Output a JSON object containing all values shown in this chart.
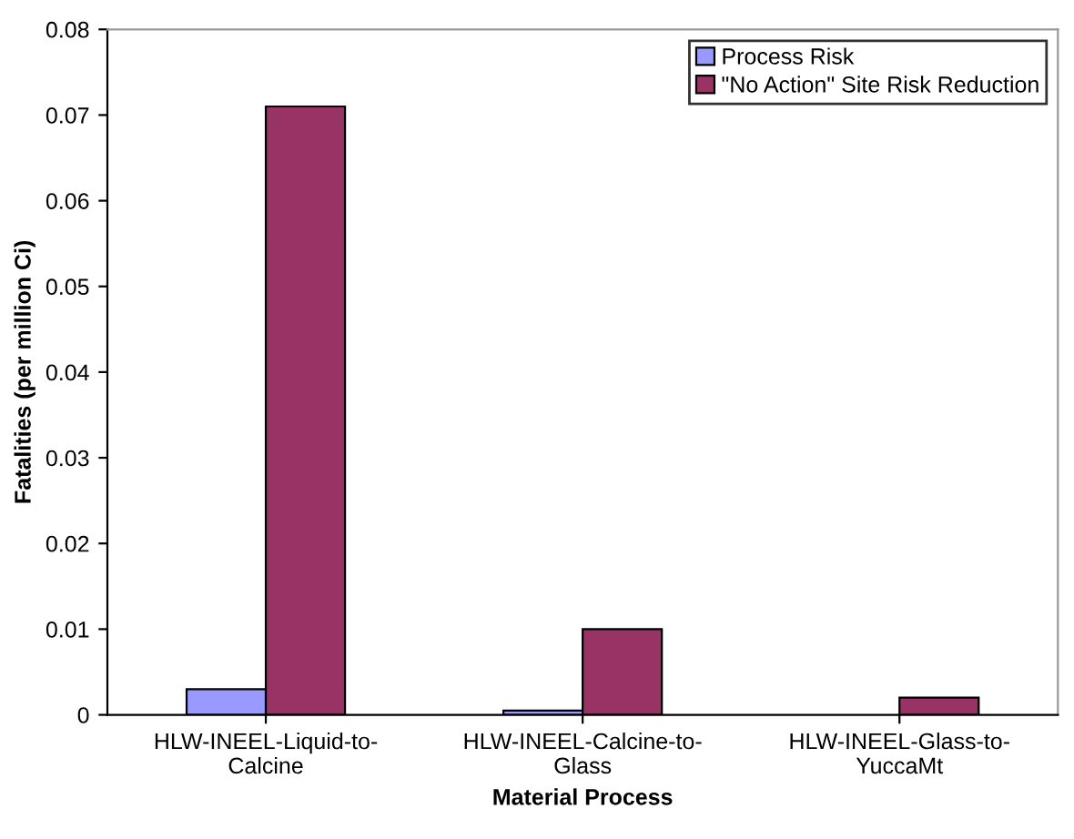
{
  "chart_data": {
    "type": "bar",
    "xlabel": "Material Process",
    "ylabel": "Fatalities (per million Ci)",
    "categories": [
      "HLW-INEEL-Liquid-to-\nCalcine",
      "HLW-INEEL-Calcine-to-\nGlass",
      "HLW-INEEL-Glass-to-\nYuccaMt"
    ],
    "series": [
      {
        "name": "Process Risk",
        "color": "#9999ff",
        "values": [
          0.003,
          0.0005,
          null
        ]
      },
      {
        "name": "\"No Action\" Site Risk Reduction",
        "color": "#993366",
        "values": [
          0.071,
          0.01,
          0.002
        ]
      }
    ],
    "ylim": [
      0,
      0.08
    ],
    "yticks": [
      0,
      0.01,
      0.02,
      0.03,
      0.04,
      0.05,
      0.06,
      0.07,
      0.08
    ],
    "grid": false,
    "legend": "top right"
  }
}
